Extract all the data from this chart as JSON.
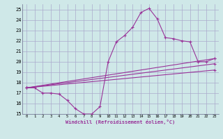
{
  "xlabel": "Windchill (Refroidissement éolien,°C)",
  "bg_color": "#cfe8e8",
  "grid_color": "#aaaacc",
  "line_color": "#993399",
  "xlim": [
    -0.5,
    23.5
  ],
  "ylim": [
    15,
    25.5
  ],
  "xticks": [
    0,
    1,
    2,
    3,
    4,
    5,
    6,
    7,
    8,
    9,
    10,
    11,
    12,
    13,
    14,
    15,
    16,
    17,
    18,
    19,
    20,
    21,
    22,
    23
  ],
  "yticks": [
    15,
    16,
    17,
    18,
    19,
    20,
    21,
    22,
    23,
    24,
    25
  ],
  "series1_x": [
    0,
    1,
    2,
    3,
    4,
    5,
    6,
    7,
    8,
    9,
    10,
    11,
    12,
    13,
    14,
    15,
    16,
    17,
    18,
    19,
    20,
    21,
    22,
    23
  ],
  "series1_y": [
    17.5,
    17.5,
    17.0,
    17.0,
    16.9,
    16.3,
    15.5,
    15.0,
    15.0,
    15.7,
    20.0,
    21.9,
    22.5,
    23.3,
    24.7,
    25.1,
    24.1,
    22.3,
    22.2,
    22.0,
    21.9,
    20.0,
    20.0,
    20.3
  ],
  "series2_x": [
    0,
    23
  ],
  "series2_y": [
    17.5,
    20.3
  ],
  "series3_x": [
    0,
    23
  ],
  "series3_y": [
    17.5,
    19.8
  ],
  "series4_x": [
    0,
    23
  ],
  "series4_y": [
    17.5,
    19.2
  ]
}
